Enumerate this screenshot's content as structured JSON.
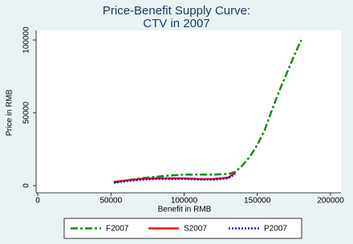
{
  "chart_data": {
    "type": "line",
    "title": "Price-Benefit Supply Curve:",
    "subtitle": "CTV in 2007",
    "x_label": "Benefit in RMB",
    "y_label": "Price in RMB",
    "x": [
      52000,
      60000,
      70000,
      80000,
      90000,
      100000,
      110000,
      120000,
      130000,
      135000,
      140000,
      145000,
      150000,
      155000,
      160000,
      165000,
      170000,
      175000,
      180000
    ],
    "series": [
      {
        "name": "F2007",
        "color": "#1a8a1a",
        "style": "dash",
        "values": [
          2000,
          3500,
          5000,
          6000,
          7000,
          7500,
          7500,
          7500,
          8000,
          9500,
          14000,
          20000,
          28000,
          38000,
          52000,
          65000,
          77000,
          89000,
          100000
        ]
      },
      {
        "name": "S2007",
        "color": "#e8141b",
        "style": "solid",
        "values": [
          2500,
          3500,
          4500,
          5000,
          5000,
          5000,
          4500,
          4500,
          5500,
          9000,
          null,
          null,
          null,
          null,
          null,
          null,
          null,
          null,
          null
        ]
      },
      {
        "name": "P2007",
        "color": "#1a1ad0",
        "style": "dot",
        "values": [
          2000,
          3000,
          4000,
          4500,
          4500,
          4500,
          4200,
          4000,
          5000,
          8000,
          null,
          null,
          null,
          null,
          null,
          null,
          null,
          null,
          null
        ]
      }
    ],
    "xlim": [
      0,
      200000
    ],
    "xticks": [
      0,
      50000,
      100000,
      150000,
      200000
    ],
    "ylim": [
      0,
      100000
    ],
    "yticks": [
      0,
      50000,
      100000
    ],
    "legend": "bottom"
  }
}
